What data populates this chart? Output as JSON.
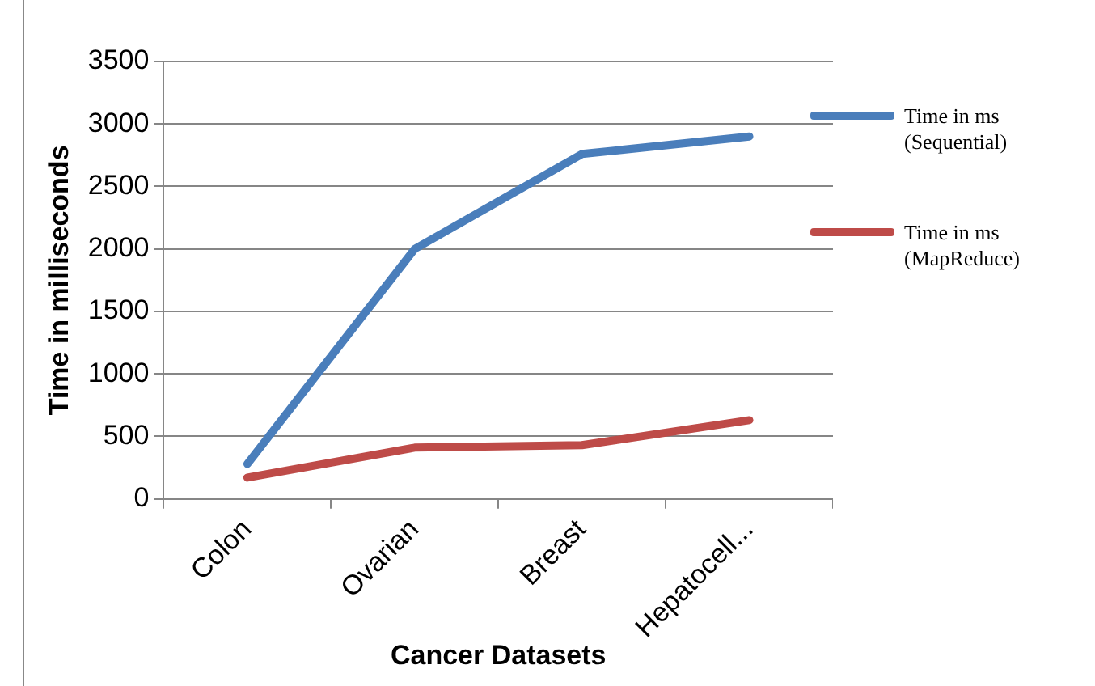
{
  "chart_data": {
    "type": "line",
    "xlabel": "Cancer Datasets",
    "ylabel": "Time in milliseconds",
    "categories": [
      "Colon",
      "Ovarian",
      "Breast",
      "Hepatocell..."
    ],
    "series": [
      {
        "name": "Time in ms (Sequential)",
        "color": "#4a7ebb",
        "values": [
          280,
          2000,
          2760,
          2900
        ]
      },
      {
        "name": "Time in ms (MapReduce)",
        "color": "#be4b48",
        "values": [
          170,
          410,
          430,
          630
        ]
      }
    ],
    "ylim": [
      0,
      3500
    ],
    "yticks": [
      0,
      500,
      1000,
      1500,
      2000,
      2500,
      3000,
      3500
    ],
    "grid": "y",
    "legend": "right",
    "marker": "none",
    "line_style": "solid"
  }
}
